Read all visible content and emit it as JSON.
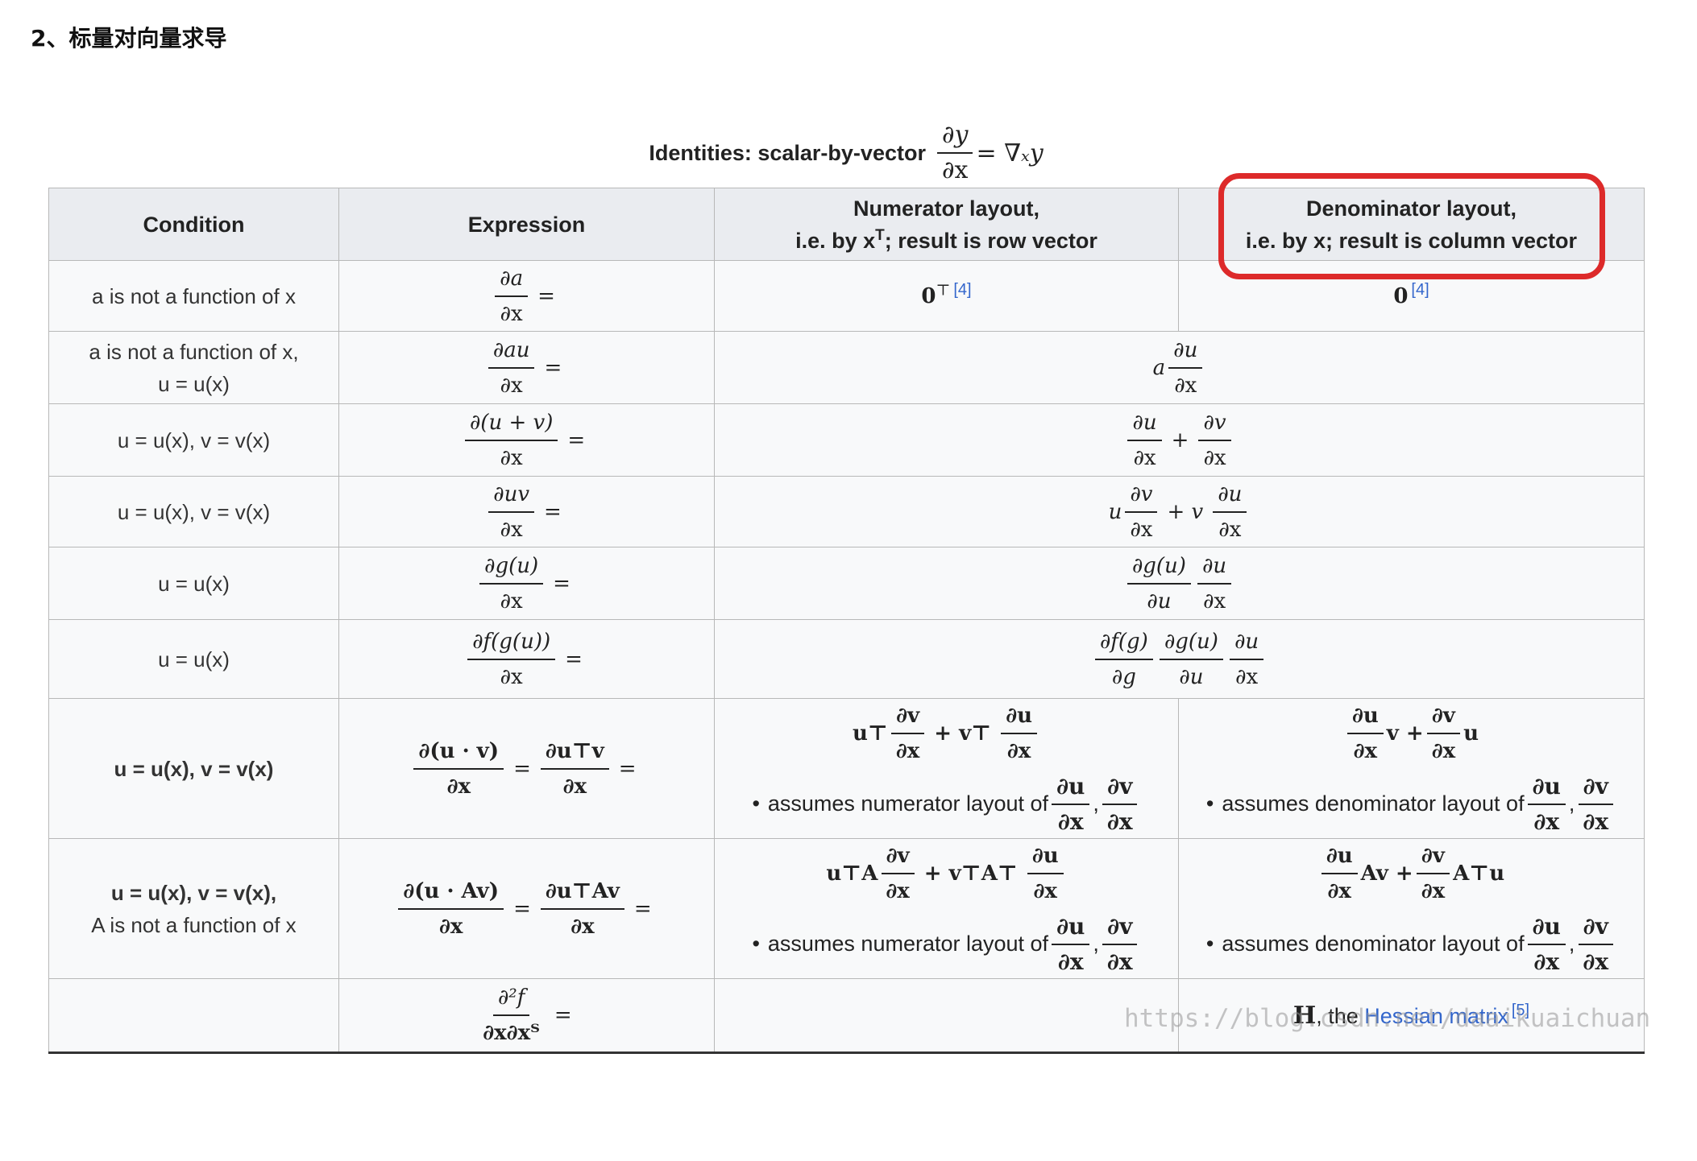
{
  "heading": "2、标量对向量求导",
  "caption": {
    "label": "Identities: scalar-by-vector",
    "lhs_num": "∂y",
    "lhs_den": "∂x",
    "rhs": "= ∇ₓy"
  },
  "headers": {
    "condition": "Condition",
    "expression": "Expression",
    "numerator_line1": "Numerator layout,",
    "numerator_line2a": "i.e. by x",
    "numerator_line2sup": "T",
    "numerator_line2b": "; result is row vector",
    "denominator_line1": "Denominator layout,",
    "denominator_line2": "i.e. by x; result is column vector"
  },
  "rows": [
    {
      "condition": [
        "a is not a function of x"
      ],
      "expr_num": "∂a",
      "expr_den": "∂x",
      "numerator": "0",
      "numerator_sup": "⊤",
      "numerator_ref": "[4]",
      "denominator": "0",
      "denominator_ref": "[4]"
    },
    {
      "condition": [
        "a is not a function of x,",
        "u = u(x)"
      ],
      "expr_num": "∂au",
      "expr_den": "∂x",
      "result_prefix": "a",
      "result_num": "∂u",
      "result_den": "∂x"
    },
    {
      "condition": [
        "u = u(x), v = v(x)"
      ],
      "expr_num": "∂(u + v)",
      "expr_den": "∂x",
      "r1_num": "∂u",
      "r1_den": "∂x",
      "r_op": "+",
      "r2_num": "∂v",
      "r2_den": "∂x"
    },
    {
      "condition": [
        "u = u(x), v = v(x)"
      ],
      "expr_num": "∂uv",
      "expr_den": "∂x",
      "p1": "u",
      "r1_num": "∂v",
      "r1_den": "∂x",
      "r_op": "+ v",
      "r2_num": "∂u",
      "r2_den": "∂x"
    },
    {
      "condition": [
        "u = u(x)"
      ],
      "expr_num": "∂g(u)",
      "expr_den": "∂x",
      "r1_num": "∂g(u)",
      "r1_den": "∂u",
      "r2_num": "∂u",
      "r2_den": "∂x"
    },
    {
      "condition": [
        "u = u(x)"
      ],
      "expr_num": "∂f(g(u))",
      "expr_den": "∂x",
      "r1_num": "∂f(g)",
      "r1_den": "∂g",
      "r2_num": "∂g(u)",
      "r2_den": "∂u",
      "r3_num": "∂u",
      "r3_den": "∂x"
    },
    {
      "condition": [
        "u = u(x), v = v(x)"
      ],
      "expr1_num": "∂(u · v)",
      "expr1_den": "∂x",
      "expr2_num": "∂u⊤v",
      "expr2_den": "∂x",
      "numerator_formula": {
        "t1": "u⊤",
        "f1_num": "∂v",
        "f1_den": "∂x",
        "op": "+ v⊤",
        "f2_num": "∂u",
        "f2_den": "∂x"
      },
      "denominator_formula": {
        "f1_num": "∂u",
        "f1_den": "∂x",
        "t1": "v +",
        "f2_num": "∂v",
        "f2_den": "∂x",
        "t2": "u"
      },
      "note_numerator": "assumes numerator layout of",
      "note_denominator": "assumes denominator layout of",
      "note_f1_num": "∂u",
      "note_f1_den": "∂x",
      "note_f2_num": "∂v",
      "note_f2_den": "∂x"
    },
    {
      "condition": [
        "u = u(x), v = v(x),",
        "A is not a function of x"
      ],
      "expr1_num": "∂(u · Av)",
      "expr1_den": "∂x",
      "expr2_num": "∂u⊤Av",
      "expr2_den": "∂x",
      "numerator_formula": {
        "t1": "u⊤A",
        "f1_num": "∂v",
        "f1_den": "∂x",
        "op": "+ v⊤A⊤",
        "f2_num": "∂u",
        "f2_den": "∂x"
      },
      "denominator_formula": {
        "f1_num": "∂u",
        "f1_den": "∂x",
        "t1": "Av +",
        "f2_num": "∂v",
        "f2_den": "∂x",
        "t2": "A⊤u"
      },
      "note_numerator": "assumes numerator layout of",
      "note_denominator": "assumes denominator layout of",
      "note_f1_num": "∂u",
      "note_f1_den": "∂x",
      "note_f2_num": "∂v",
      "note_f2_den": "∂x"
    },
    {
      "condition": [
        ""
      ],
      "expr_num": "∂²f",
      "expr_den": "∂x∂xᵀ",
      "denominator_bold": "H",
      "denominator_text": ", the ",
      "denominator_link": "Hessian matrix",
      "denominator_ref": "[5]"
    }
  ],
  "watermark": "https://blog.csdn.net/daaikuaichuan",
  "highlight_color": "#dd2a2a"
}
